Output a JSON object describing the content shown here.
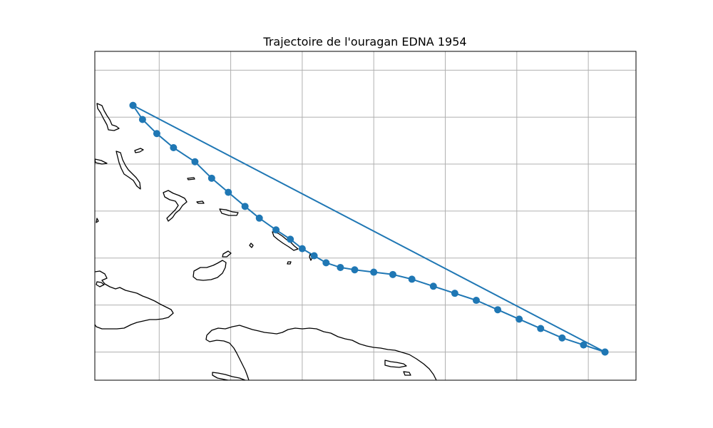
{
  "figure": {
    "title": "Trajectoire de l'ouragan EDNA 1954"
  },
  "chart_data": {
    "type": "line",
    "title": "Trajectoire de l'ouragan EDNA 1954",
    "xlabel": "",
    "ylabel": "",
    "xlim": [
      -80.7,
      -58.0
    ],
    "ylim": [
      14.8,
      28.8
    ],
    "grid": true,
    "map_projection": "PlateCarree",
    "land_outline_color": "#000000",
    "series": [
      {
        "marker": "circle",
        "color": "#1f77b4",
        "lon": [
          -79.1,
          -78.7,
          -78.1,
          -77.4,
          -76.5,
          -75.8,
          -75.1,
          -74.4,
          -73.8,
          -73.1,
          -72.5,
          -72.0,
          -71.5,
          -71.0,
          -70.4,
          -69.8,
          -69.0,
          -68.2,
          -67.4,
          -66.5,
          -65.6,
          -64.7,
          -63.8,
          -62.9,
          -62.0,
          -61.1,
          -60.2,
          -59.3,
          -59.3,
          -79.1
        ],
        "lat": [
          26.5,
          25.9,
          25.3,
          24.7,
          24.1,
          23.4,
          22.8,
          22.2,
          21.7,
          21.2,
          20.8,
          20.4,
          20.1,
          19.8,
          19.6,
          19.5,
          19.4,
          19.3,
          19.1,
          18.8,
          18.5,
          18.2,
          17.8,
          17.4,
          17.0,
          16.6,
          16.3,
          16.0,
          16.0,
          26.5
        ]
      }
    ]
  }
}
